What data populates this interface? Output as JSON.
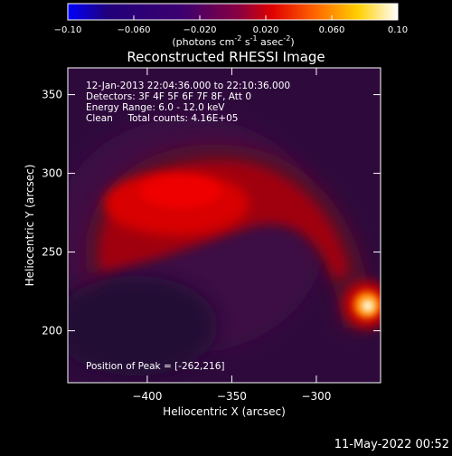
{
  "chart_data": {
    "type": "heatmap",
    "title": "Reconstructed RHESSI Image",
    "xlabel": "Heliocentric X (arcsec)",
    "ylabel": "Heliocentric Y (arcsec)",
    "xlim": [
      -447,
      -262
    ],
    "ylim": [
      167,
      367
    ],
    "x_ticks": [
      -400,
      -350,
      -300
    ],
    "y_ticks": [
      200,
      250,
      300,
      350
    ],
    "colorbar": {
      "min": -0.1,
      "max": 0.1,
      "ticks": [
        "-0.10",
        "-0.060",
        "-0.020",
        "0.020",
        "0.060",
        "0.10"
      ],
      "tick_values": [
        -0.1,
        -0.06,
        -0.02,
        0.02,
        0.06,
        0.1
      ],
      "label_main": "(photons cm",
      "label_exp1": "-2",
      "label_mid": " s",
      "label_exp2": "-1",
      "label_mid2": " asec",
      "label_exp3": "-2",
      "label_end": ")"
    },
    "annotations": [
      "12-Jan-2013 22:04:36.000 to 22:10:36.000",
      "Detectors: 3F 4F 5F 6F 7F 8F, Att 0",
      "Energy Range: 6.0 - 12.0 keV",
      "Clean     Total counts: 4.16E+05"
    ],
    "peak_text": "Position of Peak = [-262,216]",
    "peak_position": [
      -262,
      216
    ],
    "sources": [
      {
        "name": "arc",
        "description": "extended arcade emission",
        "approx_peak_value": 0.035
      },
      {
        "name": "compact",
        "x": -262,
        "y": 216,
        "approx_peak_value": 0.1
      }
    ],
    "grid": false,
    "colormap": [
      "#0000ff",
      "#20007a",
      "#3d006f",
      "#c80014",
      "#ff0000",
      "#ff7700",
      "#ffd800",
      "#ffffff"
    ]
  },
  "footer": {
    "date": "11-May-2022 00:52"
  }
}
